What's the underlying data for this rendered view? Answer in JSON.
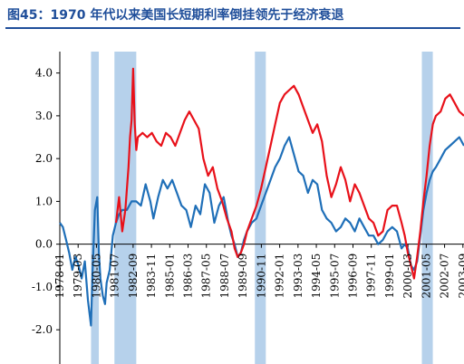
{
  "title": "图45：1970 年代以来美国长短期利率倒挂领先于经济衰退",
  "chart_data": {
    "type": "line",
    "title": "图45：1970 年代以来美国长短期利率倒挂领先于经济衰退",
    "xlabel": "",
    "ylabel": "",
    "ylim": [
      -2.8,
      4.5
    ],
    "yticks": [
      "-2.0",
      "-1.0",
      "0.0",
      "1.0",
      "2.0",
      "3.0",
      "4.0"
    ],
    "ytick_values": [
      -2.0,
      -1.0,
      0.0,
      1.0,
      2.0,
      3.0,
      4.0
    ],
    "xlim": [
      1978.0,
      2003.9
    ],
    "xticks": [
      "1978-01",
      "1979-03",
      "1980-05",
      "1981-07",
      "1982-09",
      "1983-11",
      "1985-01",
      "1986-03",
      "1987-05",
      "1988-07",
      "1989-09",
      "1990-11",
      "1992-01",
      "1993-03",
      "1994-05",
      "1995-07",
      "1996-09",
      "1997-11",
      "1999-01",
      "2000-03",
      "2001-05",
      "2002-07",
      "2003-09"
    ],
    "recessions": [
      [
        1980.0,
        1980.5
      ],
      [
        1981.5,
        1982.9
      ],
      [
        1990.5,
        1991.2
      ],
      [
        2001.2,
        2001.9
      ]
    ],
    "grid": false,
    "legend": "none",
    "series": [
      {
        "color": "#1f6fb8",
        "x": [
          1978.0,
          1978.2,
          1978.4,
          1978.6,
          1978.8,
          1979.0,
          1979.2,
          1979.4,
          1979.6,
          1979.8,
          1980.0,
          1980.1,
          1980.25,
          1980.4,
          1980.5,
          1980.6,
          1980.75,
          1980.9,
          1981.0,
          1981.2,
          1981.4,
          1981.6,
          1981.8,
          1982.0,
          1982.3,
          1982.6,
          1982.9,
          1983.2,
          1983.5,
          1983.8,
          1984.0,
          1984.3,
          1984.6,
          1984.9,
          1985.2,
          1985.5,
          1985.8,
          1986.1,
          1986.4,
          1986.7,
          1987.0,
          1987.3,
          1987.6,
          1987.9,
          1988.2,
          1988.5,
          1988.8,
          1989.0,
          1989.2,
          1989.4,
          1989.6,
          1989.8,
          1990.0,
          1990.3,
          1990.6,
          1990.9,
          1991.2,
          1991.5,
          1991.8,
          1992.1,
          1992.4,
          1992.7,
          1993.0,
          1993.3,
          1993.6,
          1993.9,
          1994.2,
          1994.5,
          1994.8,
          1995.1,
          1995.4,
          1995.7,
          1996.0,
          1996.3,
          1996.6,
          1996.9,
          1997.2,
          1997.5,
          1997.8,
          1998.1,
          1998.4,
          1998.7,
          1999.0,
          1999.3,
          1999.6,
          1999.9,
          2000.1,
          2000.3,
          2000.5,
          2000.7,
          2000.9,
          2001.1,
          2001.3,
          2001.5,
          2001.7,
          2001.9,
          2002.1,
          2002.4,
          2002.7,
          2003.0,
          2003.3,
          2003.6,
          2003.9
        ],
        "values": [
          0.5,
          0.4,
          0.1,
          -0.2,
          -0.6,
          -0.3,
          -0.5,
          -0.8,
          -0.4,
          -1.3,
          -1.9,
          -0.6,
          0.8,
          1.1,
          -0.2,
          -0.8,
          -1.2,
          -1.4,
          -0.9,
          -0.6,
          0.2,
          0.5,
          0.7,
          0.8,
          0.8,
          1.0,
          1.0,
          0.9,
          1.4,
          1.0,
          0.6,
          1.1,
          1.5,
          1.3,
          1.5,
          1.2,
          0.9,
          0.8,
          0.4,
          0.9,
          0.7,
          1.4,
          1.2,
          0.5,
          0.9,
          1.1,
          0.5,
          0.2,
          0.0,
          -0.3,
          -0.2,
          0.1,
          0.3,
          0.5,
          0.6,
          0.9,
          1.2,
          1.5,
          1.8,
          2.0,
          2.3,
          2.5,
          2.1,
          1.7,
          1.6,
          1.2,
          1.5,
          1.4,
          0.8,
          0.6,
          0.5,
          0.3,
          0.4,
          0.6,
          0.5,
          0.3,
          0.6,
          0.4,
          0.2,
          0.2,
          0.0,
          0.1,
          0.3,
          0.4,
          0.3,
          -0.1,
          0.0,
          -0.1,
          -0.5,
          -0.6,
          -0.4,
          0.2,
          0.8,
          1.2,
          1.5,
          1.7,
          1.8,
          2.0,
          2.2,
          2.3,
          2.4,
          2.5,
          2.3
        ]
      },
      {
        "color": "#e8111a",
        "x": [
          1981.6,
          1981.8,
          1982.0,
          1982.2,
          1982.4,
          1982.5,
          1982.6,
          1982.7,
          1982.8,
          1982.9,
          1983.0,
          1983.3,
          1983.6,
          1983.9,
          1984.2,
          1984.5,
          1984.8,
          1985.1,
          1985.4,
          1985.7,
          1986.0,
          1986.3,
          1986.6,
          1986.9,
          1987.2,
          1987.5,
          1987.8,
          1988.1,
          1988.4,
          1988.7,
          1989.0,
          1989.2,
          1989.4,
          1989.6,
          1989.8,
          1990.0,
          1990.3,
          1990.6,
          1990.9,
          1991.2,
          1991.5,
          1991.8,
          1992.1,
          1992.4,
          1992.7,
          1993.0,
          1993.3,
          1993.6,
          1993.9,
          1994.2,
          1994.5,
          1994.8,
          1995.1,
          1995.4,
          1995.7,
          1996.0,
          1996.3,
          1996.6,
          1996.9,
          1997.2,
          1997.5,
          1997.8,
          1998.1,
          1998.4,
          1998.7,
          1999.0,
          1999.3,
          1999.6,
          1999.9,
          2000.1,
          2000.3,
          2000.5,
          2000.7,
          2000.9,
          2001.1,
          2001.3,
          2001.5,
          2001.7,
          2001.9,
          2002.1,
          2002.4,
          2002.7,
          2003.0,
          2003.3,
          2003.6,
          2003.9
        ],
        "values": [
          0.5,
          1.1,
          0.3,
          0.8,
          1.8,
          2.5,
          2.9,
          4.1,
          2.8,
          2.2,
          2.5,
          2.6,
          2.5,
          2.6,
          2.4,
          2.3,
          2.6,
          2.5,
          2.3,
          2.6,
          2.9,
          3.1,
          2.9,
          2.7,
          2.0,
          1.6,
          1.8,
          1.3,
          1.0,
          0.6,
          0.3,
          -0.1,
          -0.3,
          -0.2,
          0.0,
          0.3,
          0.6,
          0.9,
          1.3,
          1.8,
          2.3,
          2.8,
          3.3,
          3.5,
          3.6,
          3.7,
          3.5,
          3.2,
          2.9,
          2.6,
          2.8,
          2.4,
          1.6,
          1.1,
          1.4,
          1.8,
          1.5,
          1.0,
          1.4,
          1.2,
          0.9,
          0.6,
          0.5,
          0.2,
          0.3,
          0.8,
          0.9,
          0.9,
          0.5,
          0.2,
          -0.2,
          -0.5,
          -0.8,
          -0.3,
          0.3,
          1.0,
          1.6,
          2.3,
          2.8,
          3.0,
          3.1,
          3.4,
          3.5,
          3.3,
          3.1,
          3.0
        ]
      }
    ]
  }
}
